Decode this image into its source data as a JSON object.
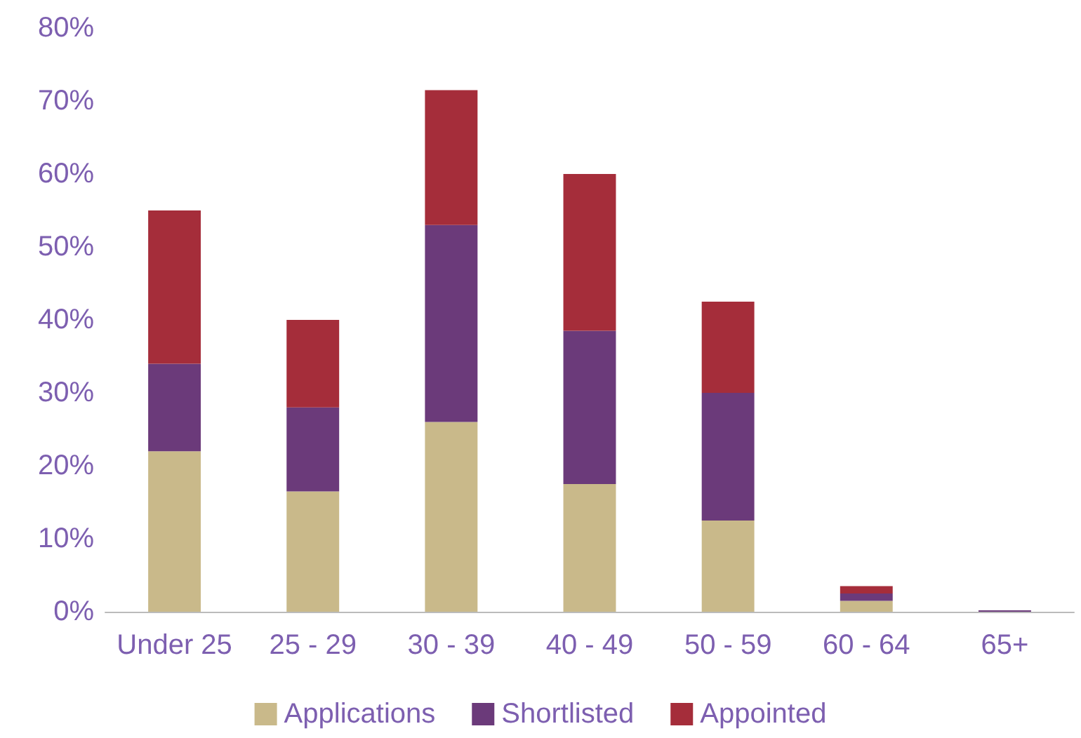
{
  "chart_data": {
    "type": "bar",
    "stacked": true,
    "categories": [
      "Under 25",
      "25 - 29",
      "30 - 39",
      "40 - 49",
      "50 - 59",
      "60 - 64",
      "65+"
    ],
    "series": [
      {
        "name": "Applications",
        "color": "#c9b98a",
        "values": [
          22,
          16.5,
          26,
          17.5,
          12.5,
          1.5,
          0
        ]
      },
      {
        "name": "Shortlisted",
        "color": "#6b3a7a",
        "values": [
          12,
          11.5,
          27,
          21,
          17.5,
          1,
          0.2
        ]
      },
      {
        "name": "Appointed",
        "color": "#a52d3a",
        "values": [
          21,
          12,
          18.5,
          21.5,
          12.5,
          1,
          0
        ]
      }
    ],
    "ylim": [
      0,
      80
    ],
    "yticks": [
      {
        "value": 0,
        "label": "0%"
      },
      {
        "value": 10,
        "label": "10%"
      },
      {
        "value": 20,
        "label": "20%"
      },
      {
        "value": 30,
        "label": "30%"
      },
      {
        "value": 40,
        "label": "40%"
      },
      {
        "value": 50,
        "label": "50%"
      },
      {
        "value": 60,
        "label": "60%"
      },
      {
        "value": 70,
        "label": "70%"
      },
      {
        "value": 80,
        "label": "80%"
      }
    ],
    "grid": false,
    "legend": "bottom"
  }
}
